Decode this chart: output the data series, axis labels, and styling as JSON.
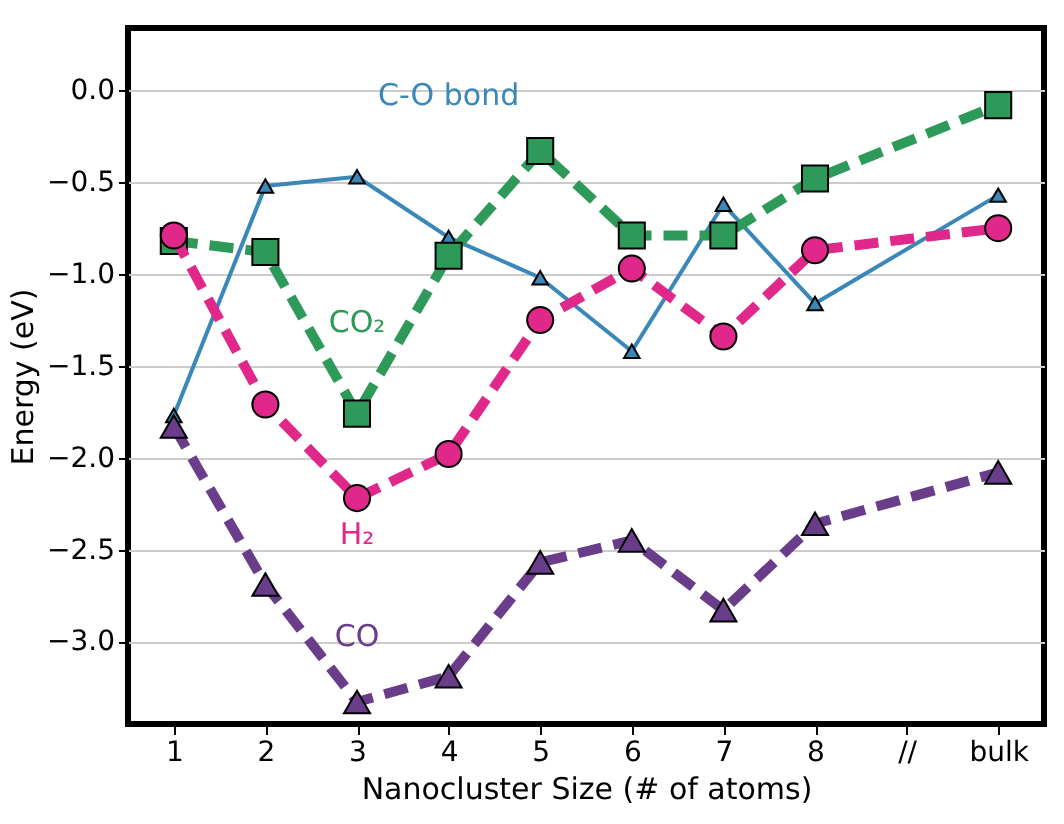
{
  "chart_data": {
    "type": "line",
    "xlabel": "Nanocluster Size (# of atoms)",
    "ylabel": "Energy (eV)",
    "categories": [
      "1",
      "2",
      "3",
      "4",
      "5",
      "6",
      "7",
      "8",
      "//",
      "bulk"
    ],
    "ylim": [
      -3.45,
      0.34
    ],
    "yticks": [
      {
        "value": -3,
        "label": "−3.0"
      },
      {
        "value": -2.5,
        "label": "−2.5"
      },
      {
        "value": -2,
        "label": "−2.0"
      },
      {
        "value": -1.5,
        "label": "−1.5"
      },
      {
        "value": -1,
        "label": "−1.0"
      },
      {
        "value": -0.5,
        "label": "−0.5"
      },
      {
        "value": 0,
        "label": "0.0"
      }
    ],
    "grid": "y",
    "series": [
      {
        "name": "C-O bond",
        "color": "#3a87b8",
        "marker": "triangle",
        "line_style": "solid",
        "values": [
          -1.77,
          -0.52,
          -0.47,
          -0.8,
          -1.02,
          -1.42,
          -0.62,
          -1.16,
          null,
          -0.57
        ]
      },
      {
        "name": "CO₂",
        "color": "#2e9a5a",
        "marker": "square",
        "line_style": "dashed",
        "values": [
          -0.82,
          -0.88,
          -1.76,
          -0.9,
          -0.33,
          -0.79,
          -0.79,
          -0.48,
          null,
          -0.08
        ]
      },
      {
        "name": "H₂",
        "color": "#e0288a",
        "marker": "circle",
        "line_style": "dashed",
        "values": [
          -0.79,
          -1.71,
          -2.22,
          -1.98,
          -1.25,
          -0.97,
          -1.34,
          -0.87,
          null,
          -0.75
        ]
      },
      {
        "name": "CO",
        "color": "#6a3d8a",
        "marker": "triangle",
        "line_style": "dashed",
        "values": [
          -1.83,
          -2.69,
          -3.33,
          -3.19,
          -2.57,
          -2.45,
          -2.83,
          -2.36,
          null,
          -2.08
        ]
      }
    ]
  }
}
